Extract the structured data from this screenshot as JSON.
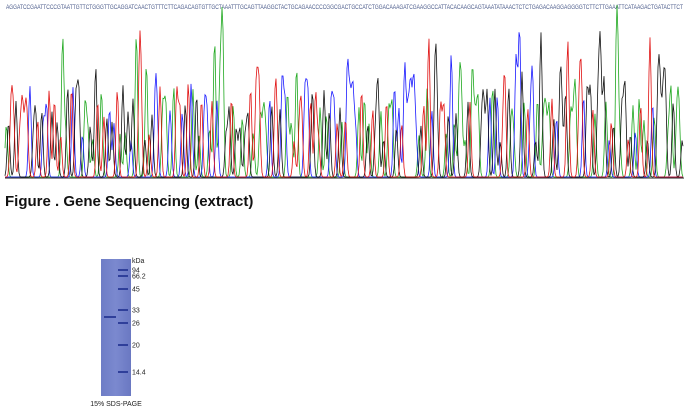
{
  "sequencing": {
    "sequence": "AGGATCCGAATTCCCGTAATTGTTCTGGGTTGCAGGATCAACTGTTTCTTCAGACAGTGTTGCTAAATTTGCAGTTAAGGCTACTGCAGAACCCCGGCGACTGCCATCTGGACAAAGATCGAAGGCCATTACACAAGCAGTAAATATAAACTCTCTGAGACAAGGAGGGGTCTTCTTGAAATTCATAAGACTGATACTTCT",
    "caption": "Figure . Gene Sequencing (extract)"
  },
  "gel": {
    "unit": "kDa",
    "markers": [
      "94",
      "66.2",
      "45",
      "33",
      "26",
      "20",
      "14.4"
    ],
    "caption": "15% SDS-PAGE"
  }
}
